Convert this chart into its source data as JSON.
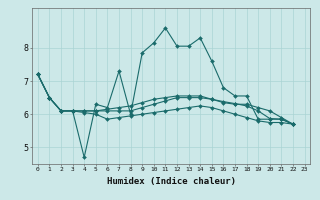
{
  "xlabel": "Humidex (Indice chaleur)",
  "bg_color": "#cce8e8",
  "line_color": "#1a6b6b",
  "grid_color": "#aad4d4",
  "xlim": [
    -0.5,
    23.5
  ],
  "ylim": [
    4.5,
    9.2
  ],
  "yticks": [
    5,
    6,
    7,
    8
  ],
  "xticks": [
    0,
    1,
    2,
    3,
    4,
    5,
    6,
    7,
    8,
    9,
    10,
    11,
    12,
    13,
    14,
    15,
    16,
    17,
    18,
    19,
    20,
    21,
    22,
    23
  ],
  "series": [
    [
      7.2,
      6.5,
      6.1,
      6.1,
      4.7,
      6.3,
      6.2,
      7.3,
      6.0,
      7.85,
      8.15,
      8.6,
      8.05,
      8.05,
      8.3,
      7.6,
      6.8,
      6.55,
      6.55,
      5.85,
      5.85,
      5.85,
      5.7
    ],
    [
      7.2,
      6.5,
      6.1,
      6.1,
      6.1,
      6.1,
      6.15,
      6.2,
      6.25,
      6.35,
      6.45,
      6.5,
      6.55,
      6.55,
      6.55,
      6.45,
      6.38,
      6.32,
      6.25,
      6.1,
      5.87,
      5.85,
      5.7
    ],
    [
      7.2,
      6.5,
      6.1,
      6.1,
      6.1,
      6.1,
      6.1,
      6.1,
      6.1,
      6.2,
      6.3,
      6.4,
      6.5,
      6.5,
      6.5,
      6.45,
      6.35,
      6.3,
      6.3,
      6.2,
      6.1,
      5.9,
      5.7
    ],
    [
      7.2,
      6.5,
      6.1,
      6.1,
      6.05,
      6.0,
      5.85,
      5.9,
      5.95,
      6.0,
      6.05,
      6.1,
      6.15,
      6.2,
      6.25,
      6.2,
      6.1,
      6.0,
      5.9,
      5.8,
      5.75,
      5.75,
      5.7
    ]
  ]
}
